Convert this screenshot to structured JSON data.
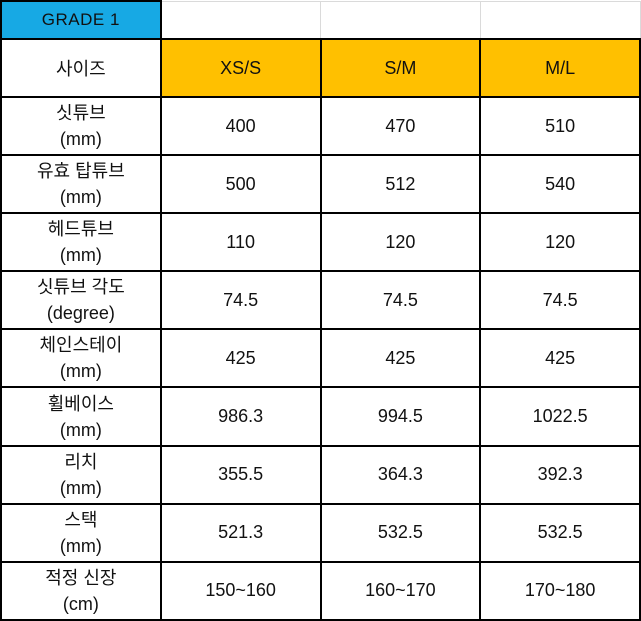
{
  "table": {
    "grade_label": "GRADE 1",
    "size_header": "사이즈",
    "columns": [
      "XS/S",
      "S/M",
      "M/L"
    ],
    "rows": [
      {
        "label": "싯튜브",
        "unit": "(mm)",
        "values": [
          "400",
          "470",
          "510"
        ]
      },
      {
        "label": "유효 탑튜브",
        "unit": "(mm)",
        "values": [
          "500",
          "512",
          "540"
        ]
      },
      {
        "label": "헤드튜브",
        "unit": "(mm)",
        "values": [
          "110",
          "120",
          "120"
        ]
      },
      {
        "label": "싯튜브 각도",
        "unit": "(degree)",
        "values": [
          "74.5",
          "74.5",
          "74.5"
        ]
      },
      {
        "label": "체인스테이",
        "unit": "(mm)",
        "values": [
          "425",
          "425",
          "425"
        ]
      },
      {
        "label": "휠베이스",
        "unit": "(mm)",
        "values": [
          "986.3",
          "994.5",
          "1022.5"
        ]
      },
      {
        "label": "리치",
        "unit": "(mm)",
        "values": [
          "355.5",
          "364.3",
          "392.3"
        ]
      },
      {
        "label": "스택",
        "unit": "(mm)",
        "values": [
          "521.3",
          "532.5",
          "532.5"
        ]
      },
      {
        "label": "적정 신장",
        "unit": "(cm)",
        "values": [
          "150~160",
          "160~170",
          "170~180"
        ]
      }
    ],
    "colors": {
      "grade_bg": "#17A9E4",
      "size_header_bg": "#FFC000",
      "border": "#000000",
      "gridline": "#DADADA",
      "text": "#111111"
    }
  }
}
